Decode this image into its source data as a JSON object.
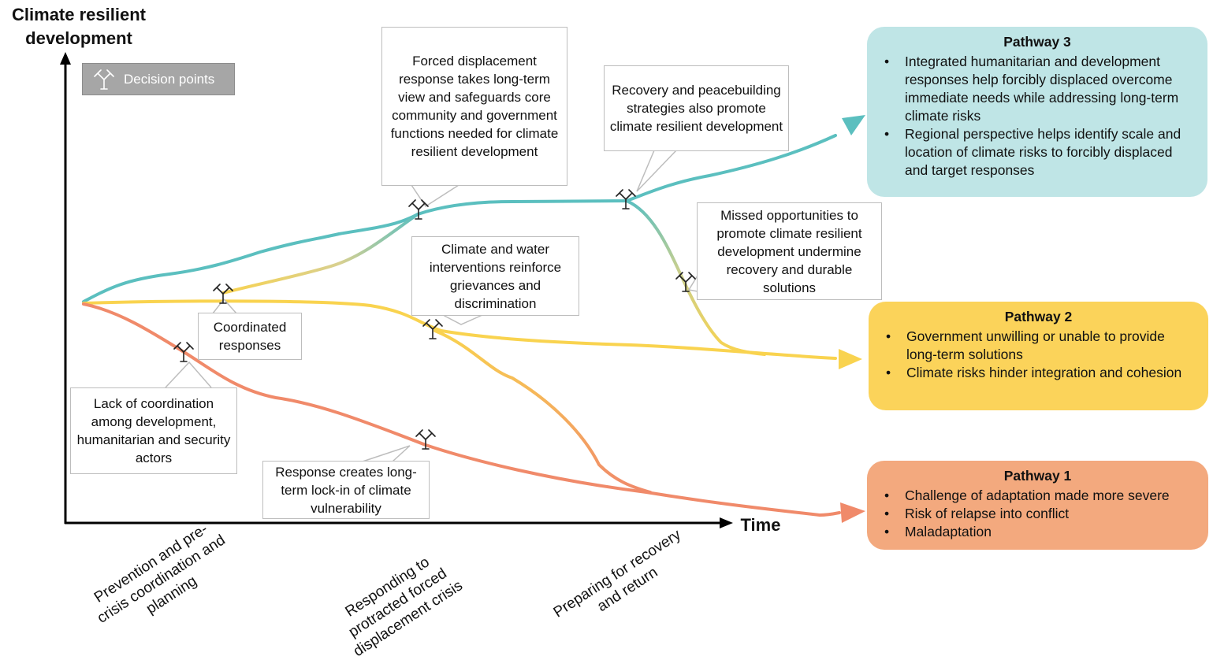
{
  "axes": {
    "y_title": "Climate resilient development",
    "y_title_line1": "Climate resilient",
    "y_title_line2": "development",
    "x_title": "Time"
  },
  "legend": {
    "label": "Decision points",
    "icon": "decision-point-icon"
  },
  "callouts": {
    "forced_displacement": "Forced displacement response takes long-term view and safeguards core community and government functions needed for climate resilient development",
    "recovery_peacebuilding": "Recovery and peacebuilding strategies also promote climate resilient development",
    "missed_opportunities": "Missed opportunities to promote climate resilient development undermine recovery and durable solutions",
    "climate_water": "Climate and water interventions reinforce grievances and discrimination",
    "coordinated": "Coordinated responses",
    "lack_coordination": "Lack of coordination among development, humanitarian and security actors",
    "lock_in": "Response creates long-term lock-in of climate vulnerability"
  },
  "pathways": [
    {
      "id": "pathway-3",
      "title": "Pathway 3",
      "color": "#5bbfbf",
      "box_color": "#bfe5e6",
      "bullets": [
        "Integrated humanitarian and development responses help forcibly displaced overcome immediate needs while addressing long-term climate risks",
        "Regional perspective helps identify scale and location of climate risks to forcibly displaced and target responses"
      ]
    },
    {
      "id": "pathway-2",
      "title": "Pathway 2",
      "color": "#f9d34f",
      "box_color": "#fbd35a",
      "bullets": [
        "Government unwilling or unable to provide long-term solutions",
        "Climate risks hinder integration and cohesion"
      ]
    },
    {
      "id": "pathway-1",
      "title": "Pathway 1",
      "color": "#f08a6a",
      "box_color": "#f3a97e",
      "bullets": [
        "Challenge of adaptation made more severe",
        "Risk of relapse into conflict",
        "Maladaptation"
      ]
    }
  ],
  "phases": [
    "Prevention and pre-crisis coordination and planning",
    "Responding to protracted forced displacement crisis",
    "Preparing for recovery and return"
  ],
  "phase_lines": [
    [
      "Prevention and pre-",
      "crisis coordination and",
      "planning"
    ],
    [
      "Responding to",
      "protracted forced",
      "displacement crisis"
    ],
    [
      "Preparing for recovery",
      "and return"
    ]
  ],
  "colors": {
    "teal": "#5bbfbf",
    "yellow": "#f9d34f",
    "orange": "#f08a6a",
    "amber": "#f5b860",
    "callout_border": "#bdbdbd",
    "legend_bg": "#a6a6a6"
  }
}
